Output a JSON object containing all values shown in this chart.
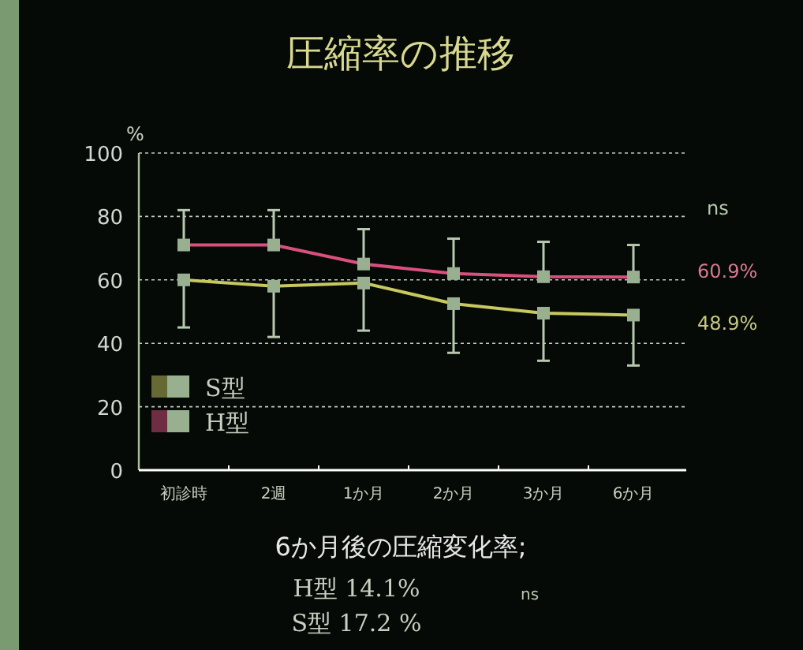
{
  "chart_data": {
    "type": "line",
    "title": "圧縮率の推移",
    "ylabel": "%",
    "categories": [
      "初診時",
      "2週",
      "1か月",
      "2か月",
      "3か月",
      "6か月"
    ],
    "series": [
      {
        "name": "S型",
        "color": "#c8c860",
        "values": [
          60,
          58,
          59,
          52.5,
          49.5,
          48.9
        ],
        "errors": [
          [
            45,
            60
          ],
          [
            42,
            58
          ],
          [
            44,
            59
          ],
          [
            37,
            52.5
          ],
          [
            34.5,
            49.5
          ],
          [
            33,
            48.9
          ]
        ]
      },
      {
        "name": "H型",
        "color": "#d85080",
        "values": [
          71,
          71,
          65,
          62,
          61,
          60.9
        ],
        "errors": [
          [
            71,
            82
          ],
          [
            71,
            82
          ],
          [
            65,
            76
          ],
          [
            62,
            73
          ],
          [
            61,
            72
          ],
          [
            60.9,
            71
          ]
        ]
      }
    ],
    "ylim": [
      0,
      100
    ],
    "yticks": [
      0,
      20,
      40,
      60,
      80,
      100
    ],
    "grid": "y",
    "legend": "bottom left",
    "marker": "square",
    "annotations": [
      "ns",
      "60.9%",
      "48.9%",
      "6か月後の圧縮変化率;",
      "H型 14.1%",
      "ns",
      "S型 17.2 %"
    ]
  }
}
